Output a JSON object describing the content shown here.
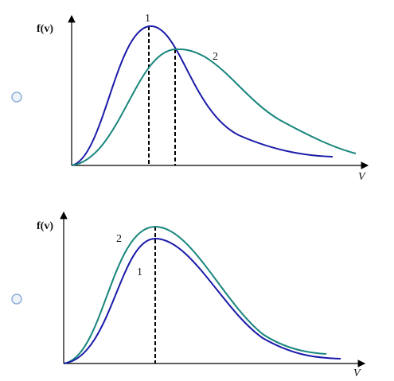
{
  "options": [
    {
      "y_label": "f(v)",
      "x_label": "V",
      "curve_labels": [
        "1",
        "2"
      ]
    },
    {
      "y_label": "f(v)",
      "x_label": "V",
      "curve_labels": [
        "1",
        "2"
      ]
    }
  ]
}
